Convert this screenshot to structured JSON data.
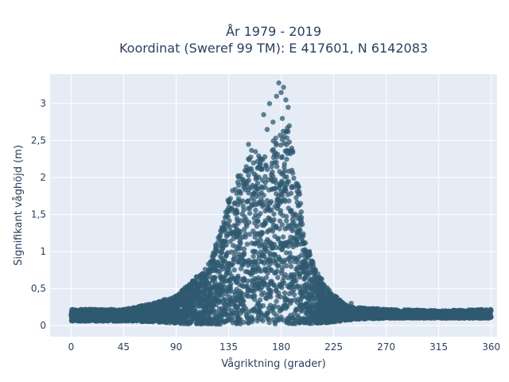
{
  "chart_data": {
    "type": "scatter",
    "title_lines": [
      "År 1979 - 2019",
      "Koordinat (Sweref 99 TM): E 417601, N 6142083"
    ],
    "xlabel": "Vågriktning (grader)",
    "ylabel": "Signifikant våghöjd (m)",
    "xlim": [
      -18,
      365
    ],
    "ylim": [
      -0.15,
      3.4
    ],
    "x_ticks": [
      0,
      45,
      90,
      135,
      180,
      225,
      270,
      315,
      360
    ],
    "x_tick_labels": [
      "0",
      "45",
      "90",
      "135",
      "180",
      "225",
      "270",
      "315",
      "360"
    ],
    "y_ticks": [
      0,
      0.5,
      1,
      1.5,
      2,
      2.5,
      3
    ],
    "y_tick_labels": [
      "0",
      "0,5",
      "1",
      "1,5",
      "2",
      "2,5",
      "3"
    ],
    "grid": true,
    "marker_color": "#2f5a70",
    "plot_background": "#e5ecf6",
    "envelope": {
      "x": [
        0,
        20,
        45,
        70,
        90,
        100,
        110,
        120,
        130,
        135,
        140,
        150,
        155,
        160,
        170,
        175,
        180,
        185,
        190,
        195,
        200,
        210,
        220,
        230,
        240,
        270,
        315,
        360
      ],
      "ymax": [
        0.22,
        0.22,
        0.22,
        0.3,
        0.4,
        0.55,
        0.7,
        0.9,
        1.4,
        1.8,
        1.95,
        2.2,
        2.45,
        2.3,
        2.3,
        2.6,
        2.6,
        2.7,
        2.35,
        1.9,
        1.2,
        0.75,
        0.5,
        0.35,
        0.25,
        0.22,
        0.2,
        0.22
      ],
      "ymin": [
        0.06,
        0.06,
        0.06,
        0.05,
        0.03,
        0.02,
        0.02,
        0.02,
        0.02,
        0.02,
        0.02,
        0.02,
        0.02,
        0.02,
        0.02,
        0.02,
        0.02,
        0.02,
        0.02,
        0.02,
        0.02,
        0.03,
        0.04,
        0.06,
        0.08,
        0.1,
        0.1,
        0.1
      ]
    },
    "outliers": [
      {
        "x": 178,
        "y": 3.28
      },
      {
        "x": 182,
        "y": 3.22
      },
      {
        "x": 180,
        "y": 3.15
      },
      {
        "x": 176,
        "y": 3.1
      },
      {
        "x": 184,
        "y": 3.05
      },
      {
        "x": 170,
        "y": 3.0
      },
      {
        "x": 186,
        "y": 2.95
      },
      {
        "x": 165,
        "y": 2.85
      },
      {
        "x": 181,
        "y": 2.8
      },
      {
        "x": 187,
        "y": 2.7
      },
      {
        "x": 173,
        "y": 2.75
      },
      {
        "x": 168,
        "y": 2.65
      },
      {
        "x": 152,
        "y": 2.45
      },
      {
        "x": 158,
        "y": 2.35
      },
      {
        "x": 75,
        "y": 0.32
      },
      {
        "x": 80,
        "y": 0.35
      },
      {
        "x": 85,
        "y": 0.33
      },
      {
        "x": 240,
        "y": 0.3
      }
    ]
  }
}
